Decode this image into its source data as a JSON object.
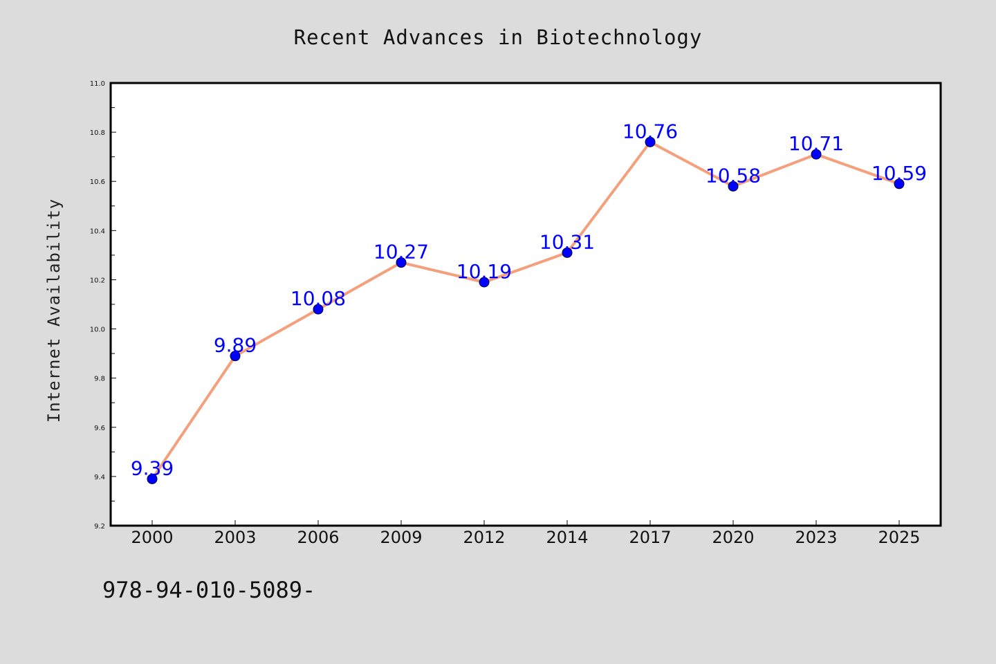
{
  "chart_data": {
    "type": "line",
    "title": "Recent Advances in Biotechnology",
    "xlabel": "",
    "ylabel": "Internet Availability",
    "categories": [
      "2000",
      "2003",
      "2006",
      "2009",
      "2012",
      "2014",
      "2017",
      "2020",
      "2023",
      "2025"
    ],
    "series": [
      {
        "values": [
          9.39,
          9.89,
          10.08,
          10.27,
          10.19,
          10.31,
          10.76,
          10.58,
          10.71,
          10.59
        ],
        "labels": [
          "9.39",
          "9.89",
          "10.08",
          "10.27",
          "10.19",
          "10.31",
          "10.76",
          "10.58",
          "10.71",
          "10.59"
        ],
        "line_color": "#f4a07c",
        "marker_color": "#0000ff"
      }
    ],
    "ylim": [
      9.2,
      11.0
    ],
    "yticks": [
      "9.2",
      "9.4",
      "9.6",
      "9.8",
      "10.0",
      "10.2",
      "10.4",
      "10.6",
      "10.8",
      "11.0"
    ],
    "grid": false,
    "legend": "none"
  },
  "footer": {
    "text": "978-94-010-5089-"
  },
  "colors": {
    "background": "#dcdcdc",
    "plot_background": "#ffffff",
    "axis": "#000000"
  }
}
